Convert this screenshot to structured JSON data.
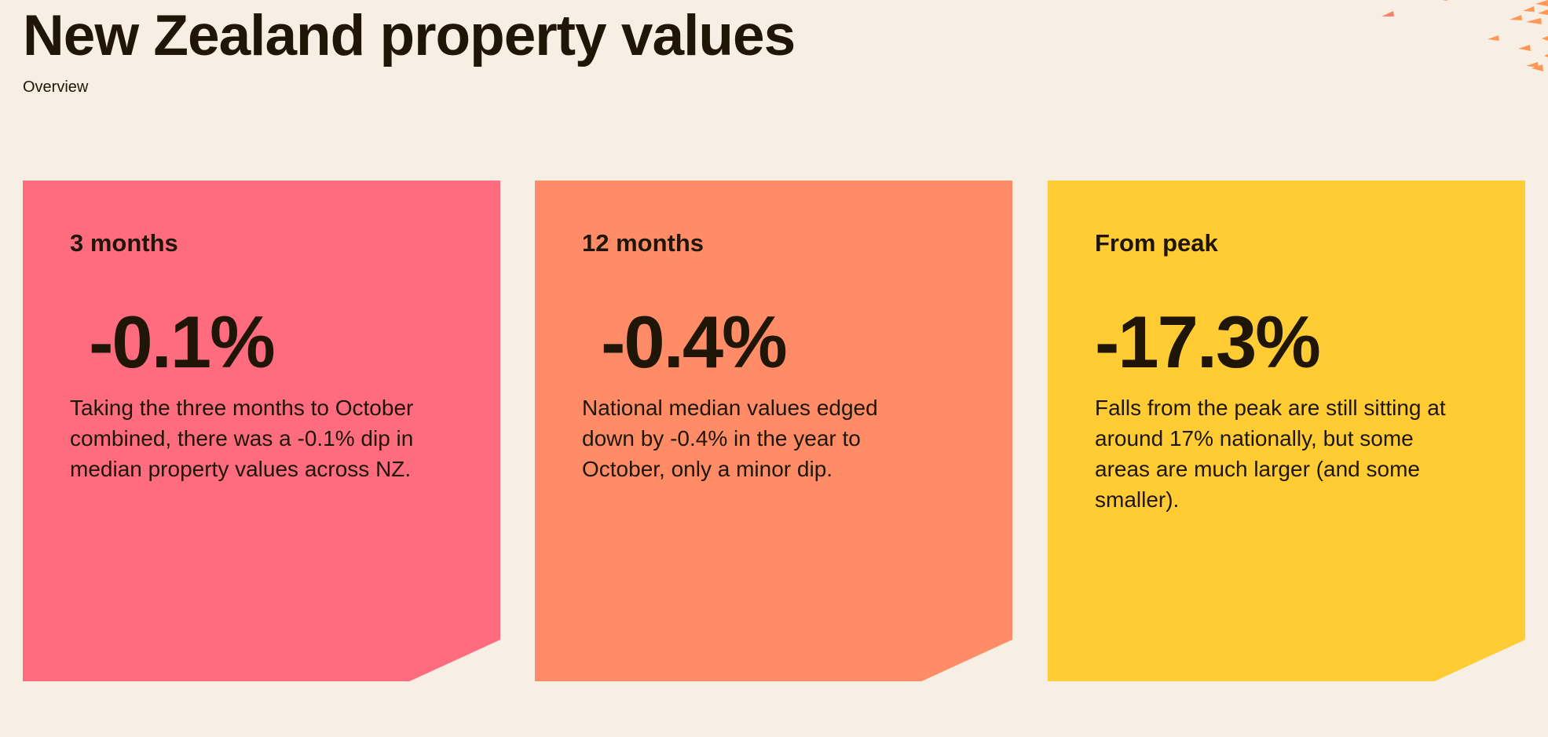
{
  "header": {
    "title": "New Zealand property values",
    "subtitle": "Overview"
  },
  "colors": {
    "background": "#f7efe3",
    "card_1": "#ff6b7f",
    "card_2": "#ff8c66",
    "card_3": "#ffcc33",
    "text": "#1f1608",
    "accent": "#ff9757"
  },
  "cards": [
    {
      "label": "3 months",
      "value": " -0.1%",
      "description": "Taking the three months to October combined, there was a -0.1% dip in median property values across NZ."
    },
    {
      "label": "12 months",
      "value": " -0.4%",
      "description": "National median values edged down by -0.4% in the year to October, only a minor dip."
    },
    {
      "label": "From peak",
      "value": "-17.3%",
      "description": "Falls from the peak are still sitting at around 17% nationally, but some areas are much larger (and some smaller)."
    }
  ]
}
